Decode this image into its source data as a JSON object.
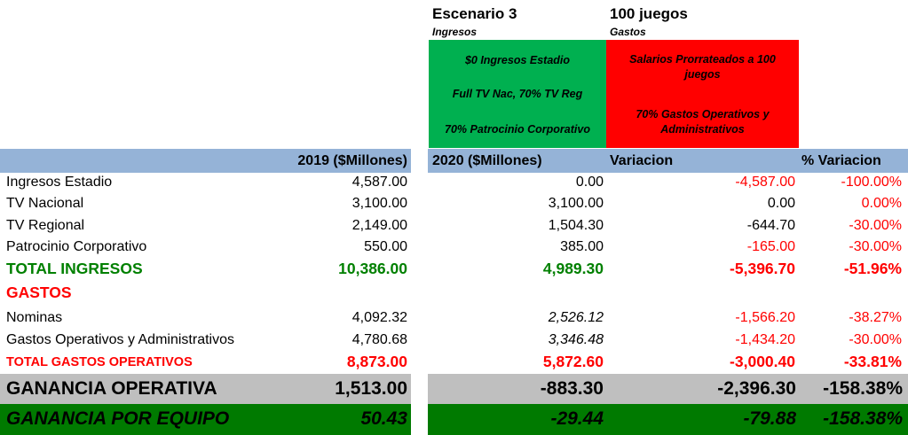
{
  "scenario": {
    "title": "Escenario 3",
    "ingresos_label": "Ingresos",
    "games_title": "100 juegos",
    "gastos_label": "Gastos",
    "ingresos_box": [
      "$0 Ingresos Estadio",
      "Full TV Nac, 70% TV Reg",
      "70% Patrocinio Corporativo"
    ],
    "gastos_box": [
      "Salarios Prorrateados a 100 juegos",
      "70% Gastos Operativos y Administrativos"
    ]
  },
  "headers": {
    "h2019": "2019 ($Millones)",
    "h2020": "2020 ($Millones)",
    "variacion": "Variacion",
    "pct_variacion": "% Variacion"
  },
  "rows": [
    {
      "label": "Ingresos Estadio",
      "v2019": "4,587.00",
      "v2020": "0.00",
      "var": "-4,587.00",
      "pct": "-100.00%"
    },
    {
      "label": "TV Nacional",
      "v2019": "3,100.00",
      "v2020": "3,100.00",
      "var": "0.00",
      "pct": "0.00%"
    },
    {
      "label": "TV Regional",
      "v2019": "2,149.00",
      "v2020": "1,504.30",
      "var": "-644.70",
      "pct": "-30.00%"
    },
    {
      "label": "Patrocinio Corporativo",
      "v2019": "550.00",
      "v2020": "385.00",
      "var": "-165.00",
      "pct": "-30.00%"
    }
  ],
  "total_ingresos": {
    "label": "TOTAL INGRESOS",
    "v2019": "10,386.00",
    "v2020": "4,989.30",
    "var": "-5,396.70",
    "pct": "-51.96%"
  },
  "gastos_heading": "GASTOS",
  "gastos_rows": [
    {
      "label": "Nominas",
      "v2019": "4,092.32",
      "v2020": "2,526.12",
      "var": "-1,566.20",
      "pct": "-38.27%"
    },
    {
      "label": "Gastos Operativos y Administrativos",
      "v2019": "4,780.68",
      "v2020": "3,346.48",
      "var": "-1,434.20",
      "pct": "-30.00%"
    }
  ],
  "total_gastos": {
    "label": "TOTAL GASTOS OPERATIVOS",
    "v2019": "8,873.00",
    "v2020": "5,872.60",
    "var": "-3,000.40",
    "pct": "-33.81%"
  },
  "ganancia_operativa": {
    "label": "GANANCIA OPERATIVA",
    "v2019": "1,513.00",
    "v2020": "-883.30",
    "var": "-2,396.30",
    "pct": "-158.38%"
  },
  "ganancia_equipo": {
    "label": "GANANCIA POR EQUIPO",
    "v2019": "50.43",
    "v2020": "-29.44",
    "var": "-79.88",
    "pct": "-158.38%"
  },
  "colors": {
    "header_blue": "#95b3d7",
    "green_box": "#00b050",
    "red_box": "#ff0000",
    "gray_band": "#bfbfbf",
    "dark_green_band": "#007a00",
    "green_text": "#008000",
    "red_text": "#ff0000"
  }
}
